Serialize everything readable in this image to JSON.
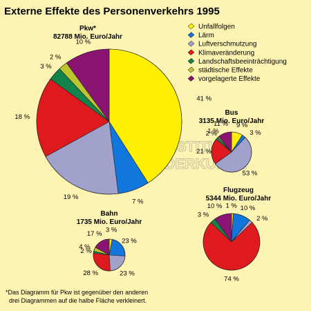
{
  "title": "Externe Effekte des Personenverkehrs 1995",
  "watermark": {
    "line1": "LEIBNIZ-INSTITUT",
    "line2": "FÜR LÄNDERKUNDE",
    "symbol": "©"
  },
  "footnote": {
    "line1": "*Das Diagramm für Pkw ist gegenüber den anderen",
    "line2": "  drei Diagrammen auf die halbe Fläche verkleinert."
  },
  "colors": {
    "background": "#fdf4b4",
    "Unfallfolgen": "#ffef00",
    "Lärm": "#1177dd",
    "Luftverschmutzung": "#a1a2cc",
    "Klimaveränderung": "#de1a1f",
    "Landschaftsbeeinträchtigung": "#12834a",
    "städtische Effekte": "#bcc62e",
    "vorgelagerte Effekte": "#8a1472"
  },
  "chart_data": [
    {
      "type": "pie",
      "title": "Pkw*",
      "subtitle": "82788 Mio. Euro/Jahr",
      "categories": [
        "Unfallfolgen",
        "Lärm",
        "Luftverschmutzung",
        "Klimaveränderung",
        "Landschaftsbeeinträchtigung",
        "städtische Effekte",
        "vorgelagerte Effekte"
      ],
      "values": [
        41,
        7,
        19,
        18,
        3,
        2,
        10
      ],
      "labels": [
        "41 %",
        "7 %",
        "19 %",
        "18 %",
        "3 %",
        "2 %",
        "10 %"
      ]
    },
    {
      "type": "pie",
      "title": "Bus",
      "subtitle": "3135 Mio. Euro/Jahr",
      "categories": [
        "Unfallfolgen",
        "Lärm",
        "Luftverschmutzung",
        "Klimaveränderung",
        "Landschaftsbeeinträchtigung",
        "städtische Effekte",
        "vorgelagerte Effekte"
      ],
      "values": [
        9,
        3,
        53,
        21,
        2,
        1,
        11
      ],
      "labels": [
        "9 %",
        "3 %",
        "53 %",
        "21 %",
        "2 %",
        "1 %",
        "11 %"
      ]
    },
    {
      "type": "pie",
      "title": "Bahn",
      "subtitle": "1735 Mio. Euro/Jahr",
      "categories": [
        "Unfallfolgen",
        "Lärm",
        "Luftverschmutzung",
        "Klimaveränderung",
        "Landschaftsbeeinträchtigung",
        "städtische Effekte",
        "vorgelagerte Effekte"
      ],
      "values": [
        3,
        23,
        23,
        28,
        2,
        4,
        17
      ],
      "labels": [
        "3 %",
        "23 %",
        "23 %",
        "28 %",
        "2 %",
        "4 %",
        "17 %"
      ]
    },
    {
      "type": "pie",
      "title": "Flugzeug",
      "subtitle": "5344 Mio. Euro/Jahr",
      "categories": [
        "Unfallfolgen",
        "Lärm",
        "Luftverschmutzung",
        "Klimaveränderung",
        "Landschaftsbeeinträchtigung",
        "städtische Effekte",
        "vorgelagerte Effekte"
      ],
      "values": [
        1,
        10,
        2,
        74,
        3,
        0,
        10
      ],
      "labels": [
        "1 %",
        "10 %",
        "2 %",
        "74 %",
        "3 %",
        "",
        "10 %"
      ]
    }
  ],
  "legend": {
    "placement": "top-right",
    "items": [
      {
        "label": "Unfallfolgen",
        "color": "#ffef00"
      },
      {
        "label": "Lärm",
        "color": "#1177dd"
      },
      {
        "label": "Luftverschmutzung",
        "color": "#a1a2cc"
      },
      {
        "label": "Klimaveränderung",
        "color": "#de1a1f"
      },
      {
        "label": "Landschaftsbeeinträchtigung",
        "color": "#12834a"
      },
      {
        "label": "städtische Effekte",
        "color": "#bcc62e"
      },
      {
        "label": "vorgelagerte Effekte",
        "color": "#8a1472"
      }
    ]
  }
}
